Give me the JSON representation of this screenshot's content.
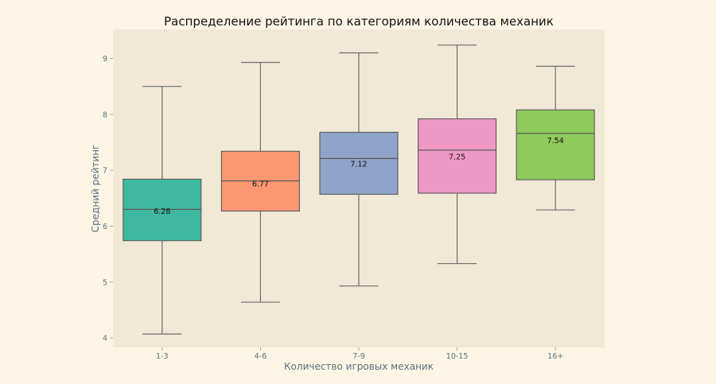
{
  "chart_data": {
    "type": "box",
    "title": "Распределение рейтинга по категориям количества механик",
    "xlabel": "Количество игровых механик",
    "ylabel": "Средний рейтинг",
    "ylim": [
      3.83,
      9.52
    ],
    "yticks": [
      4,
      5,
      6,
      7,
      8,
      9
    ],
    "grid": false,
    "colors": {
      "page_bg": "#fdf5e4",
      "plot_bg": "#f1e8d6",
      "whisker": "#6e6e6e",
      "box_edge": "#5a5a5a"
    },
    "categories": [
      "1-3",
      "4-6",
      "7-9",
      "10-15",
      "16+"
    ],
    "boxes": [
      {
        "category": "1-3",
        "whislo": 4.07,
        "q1": 5.74,
        "med": 6.3,
        "q3": 6.84,
        "whishi": 8.5,
        "annotation": "6.28",
        "color": "#3fb8a0"
      },
      {
        "category": "4-6",
        "whislo": 4.64,
        "q1": 6.27,
        "med": 6.81,
        "q3": 7.34,
        "whishi": 8.93,
        "annotation": "6.77",
        "color": "#fd9672"
      },
      {
        "category": "7-9",
        "whislo": 4.93,
        "q1": 6.57,
        "med": 7.21,
        "q3": 7.68,
        "whishi": 9.1,
        "annotation": "7.12",
        "color": "#8ea4c8"
      },
      {
        "category": "10-15",
        "whislo": 5.33,
        "q1": 6.59,
        "med": 7.36,
        "q3": 7.92,
        "whishi": 9.24,
        "annotation": "7.25",
        "color": "#ef98c4"
      },
      {
        "category": "16+",
        "whislo": 6.29,
        "q1": 6.83,
        "med": 7.66,
        "q3": 8.08,
        "whishi": 8.86,
        "annotation": "7.54",
        "color": "#8fca5c"
      }
    ]
  }
}
